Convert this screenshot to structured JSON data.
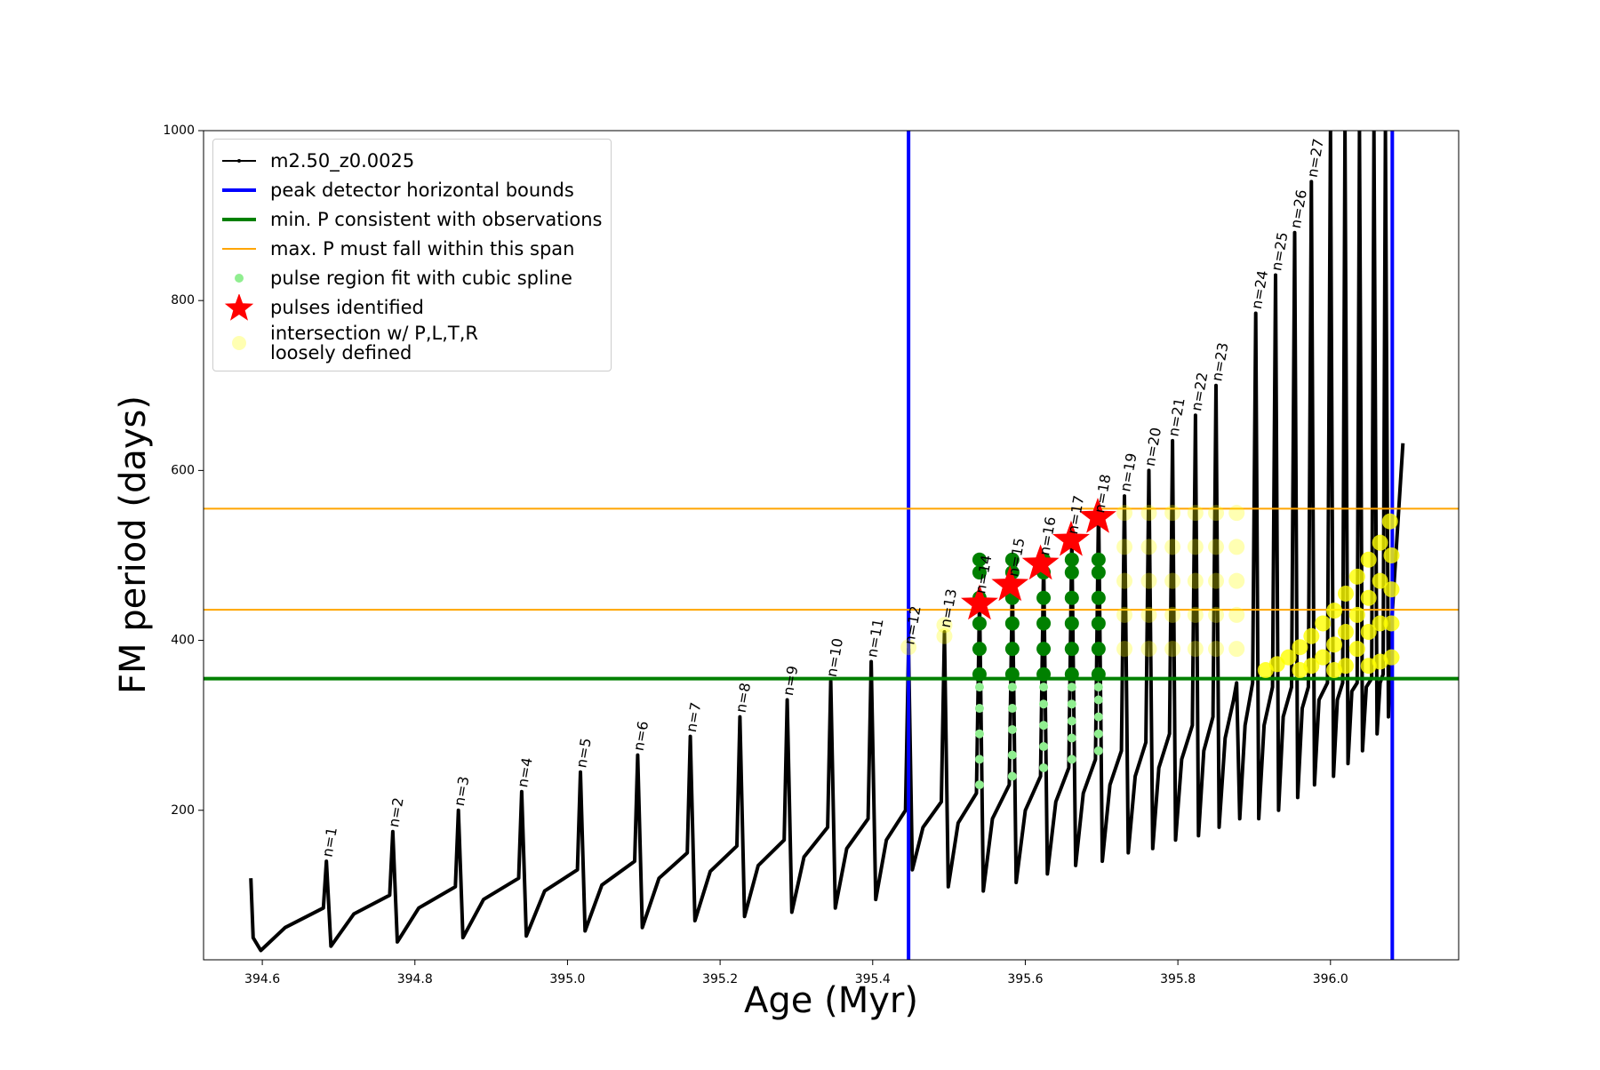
{
  "chart_data": {
    "type": "line",
    "xlabel": "Age (Myr)",
    "ylabel": "FM period (days)",
    "xlim": [
      394.523,
      396.168
    ],
    "ylim": [
      24,
      1000
    ],
    "xticks": [
      394.6,
      394.8,
      {
        "value": 395,
        "label": "395.0"
      },
      395.2,
      395.4,
      395.6,
      395.8,
      {
        "value": 396,
        "label": "396.0"
      }
    ],
    "yticks": [
      200,
      400,
      600,
      800,
      1000
    ],
    "legend": "upper left",
    "series": [
      {
        "name": "m2.50_z0.0025",
        "type": "line",
        "color": "#000000",
        "x": [
          394.585,
          394.588,
          394.598,
          394.63,
          394.68,
          394.684,
          394.69,
          394.72,
          394.767,
          394.771,
          394.777,
          394.805,
          394.853,
          394.857,
          394.863,
          394.89,
          394.936,
          394.94,
          394.946,
          394.97,
          395.013,
          395.017,
          395.023,
          395.045,
          395.088,
          395.092,
          395.098,
          395.12,
          395.157,
          395.161,
          395.167,
          395.187,
          395.222,
          395.226,
          395.232,
          395.25,
          395.284,
          395.288,
          395.294,
          395.31,
          395.341,
          395.345,
          395.351,
          395.366,
          395.394,
          395.398,
          395.404,
          395.418,
          395.443,
          395.447,
          395.452,
          395.466,
          395.49,
          395.494,
          395.499,
          395.512,
          395.536,
          395.54,
          395.545,
          395.557,
          395.579,
          395.583,
          395.588,
          395.6,
          395.62,
          395.624,
          395.629,
          395.64,
          395.657,
          395.661,
          395.666,
          395.676,
          395.692,
          395.696,
          395.701,
          395.711,
          395.726,
          395.73,
          395.735,
          395.744,
          395.758,
          395.762,
          395.767,
          395.775,
          395.789,
          395.793,
          395.797,
          395.805,
          395.819,
          395.823,
          395.827,
          395.834,
          395.846,
          395.85,
          395.854,
          395.862,
          395.873,
          395.877,
          395.881,
          395.888,
          395.898,
          395.902,
          395.906,
          395.913,
          395.924,
          395.928,
          395.932,
          395.938,
          395.949,
          395.953,
          395.957,
          395.963,
          395.971,
          395.975,
          395.979,
          395.985,
          395.996,
          396.0,
          396.004,
          396.009,
          396.016,
          396.019,
          396.023,
          396.028,
          396.035,
          396.038,
          396.042,
          396.047,
          396.054,
          396.057,
          396.061,
          396.065,
          396.069,
          396.072,
          396.076,
          396.08,
          396.095
        ],
        "y": [
          120,
          50,
          35,
          62,
          85,
          140,
          40,
          78,
          100,
          175,
          45,
          85,
          110,
          200,
          50,
          95,
          120,
          222,
          52,
          105,
          130,
          245,
          58,
          112,
          140,
          265,
          62,
          120,
          150,
          287,
          70,
          128,
          158,
          310,
          75,
          135,
          165,
          330,
          80,
          145,
          180,
          352,
          85,
          155,
          190,
          375,
          95,
          165,
          200,
          390,
          130,
          180,
          210,
          410,
          110,
          185,
          220,
          450,
          105,
          190,
          230,
          470,
          115,
          200,
          240,
          495,
          125,
          210,
          250,
          520,
          135,
          220,
          260,
          560,
          140,
          230,
          270,
          570,
          150,
          240,
          280,
          600,
          155,
          250,
          290,
          635,
          165,
          260,
          300,
          665,
          170,
          270,
          310,
          700,
          180,
          285,
          330,
          350,
          190,
          300,
          350,
          785,
          190,
          300,
          345,
          830,
          200,
          310,
          345,
          880,
          215,
          320,
          345,
          940,
          230,
          330,
          350,
          1000,
          240,
          330,
          350,
          1000,
          255,
          340,
          350,
          1000,
          270,
          345,
          355,
          1000,
          290,
          350,
          360,
          1000,
          310,
          420,
          632
        ]
      },
      {
        "name": "peak detector horizontal bounds",
        "type": "vline",
        "color": "#0000ff",
        "x": [
          395.447,
          396.081
        ]
      },
      {
        "name": "min. P consistent with observations",
        "type": "hline",
        "color": "#008000",
        "y": [
          355
        ]
      },
      {
        "name": "max. P must fall within this span",
        "type": "hline",
        "color": "#ffa500",
        "y": [
          436,
          555
        ]
      },
      {
        "name": "pulse region fit with cubic spline",
        "type": "scatter",
        "color": "#90ee90",
        "x": [
          395.54,
          395.54,
          395.54,
          395.54,
          395.54,
          395.583,
          395.583,
          395.583,
          395.583,
          395.583,
          395.624,
          395.624,
          395.624,
          395.624,
          395.624,
          395.661,
          395.661,
          395.661,
          395.661,
          395.661,
          395.696,
          395.696,
          395.696,
          395.696,
          395.696
        ],
        "y": [
          230,
          260,
          290,
          320,
          345,
          240,
          265,
          295,
          320,
          345,
          250,
          275,
          300,
          325,
          345,
          260,
          285,
          305,
          325,
          345,
          270,
          290,
          310,
          330,
          345
        ]
      },
      {
        "type": "scatter",
        "color": "#008000",
        "x": [
          395.54,
          395.54,
          395.54,
          395.54,
          395.54,
          395.54,
          395.583,
          395.583,
          395.583,
          395.583,
          395.583,
          395.583,
          395.624,
          395.624,
          395.624,
          395.624,
          395.624,
          395.624,
          395.661,
          395.661,
          395.661,
          395.661,
          395.661,
          395.661,
          395.696,
          395.696,
          395.696,
          395.696,
          395.696,
          395.696
        ],
        "y": [
          360,
          390,
          420,
          450,
          480,
          495,
          360,
          390,
          420,
          450,
          480,
          495,
          360,
          390,
          420,
          450,
          480,
          495,
          360,
          390,
          420,
          450,
          480,
          495,
          360,
          390,
          420,
          450,
          480,
          495
        ]
      },
      {
        "name": "pulses identified",
        "type": "star",
        "color": "#ff0000",
        "x": [
          395.54,
          395.58,
          395.62,
          395.66,
          395.695
        ],
        "y": [
          443,
          465,
          490,
          518,
          545
        ]
      },
      {
        "name": "intersection w/ P,L,T,R\nloosely defined",
        "type": "scatter",
        "color": "#ffff00",
        "alpha": 0.3,
        "x": [
          395.447,
          395.494,
          395.494,
          395.73,
          395.73,
          395.73,
          395.73,
          395.73,
          395.762,
          395.762,
          395.762,
          395.762,
          395.762,
          395.793,
          395.793,
          395.793,
          395.793,
          395.793,
          395.823,
          395.823,
          395.823,
          395.823,
          395.823,
          395.85,
          395.85,
          395.85,
          395.85,
          395.85,
          395.877,
          395.877,
          395.877,
          395.877,
          395.877
        ],
        "y": [
          392,
          405,
          418,
          390,
          430,
          470,
          510,
          550,
          390,
          430,
          470,
          510,
          550,
          390,
          430,
          470,
          510,
          550,
          390,
          430,
          470,
          510,
          550,
          390,
          430,
          470,
          510,
          550,
          390,
          430,
          470,
          510,
          550
        ]
      },
      {
        "type": "scatter",
        "color": "#ffff00",
        "alpha": 0.8,
        "x": [
          395.915,
          395.93,
          395.945,
          395.96,
          395.975,
          395.99,
          396.005,
          396.02,
          396.035,
          396.05,
          396.065,
          396.078,
          396.08,
          396.08,
          396.08,
          396.065,
          396.065,
          396.05,
          396.05,
          396.035,
          396.035,
          396.02,
          396.02,
          396.005,
          396.005,
          395.99,
          395.975,
          395.96,
          396.08,
          396.065,
          396.05
        ],
        "y": [
          365,
          372,
          380,
          392,
          405,
          420,
          435,
          455,
          475,
          495,
          515,
          540,
          500,
          460,
          420,
          470,
          420,
          450,
          410,
          430,
          390,
          410,
          370,
          395,
          365,
          380,
          370,
          365,
          380,
          375,
          370
        ]
      }
    ],
    "annotations": [
      {
        "text": "n=1",
        "x": 394.684,
        "y": 140
      },
      {
        "text": "n=2",
        "x": 394.771,
        "y": 175
      },
      {
        "text": "n=3",
        "x": 394.857,
        "y": 200
      },
      {
        "text": "n=4",
        "x": 394.94,
        "y": 222
      },
      {
        "text": "n=5",
        "x": 395.017,
        "y": 245
      },
      {
        "text": "n=6",
        "x": 395.092,
        "y": 265
      },
      {
        "text": "n=7",
        "x": 395.161,
        "y": 287
      },
      {
        "text": "n=8",
        "x": 395.226,
        "y": 310
      },
      {
        "text": "n=9",
        "x": 395.288,
        "y": 330
      },
      {
        "text": "n=10",
        "x": 395.345,
        "y": 352
      },
      {
        "text": "n=11",
        "x": 395.398,
        "y": 375
      },
      {
        "text": "n=12",
        "x": 395.447,
        "y": 390
      },
      {
        "text": "n=13",
        "x": 395.494,
        "y": 410
      },
      {
        "text": "n=14",
        "x": 395.54,
        "y": 450
      },
      {
        "text": "n=15",
        "x": 395.583,
        "y": 470
      },
      {
        "text": "n=16",
        "x": 395.624,
        "y": 495
      },
      {
        "text": "n=17",
        "x": 395.661,
        "y": 520
      },
      {
        "text": "n=18",
        "x": 395.696,
        "y": 545
      },
      {
        "text": "n=19",
        "x": 395.73,
        "y": 570
      },
      {
        "text": "n=20",
        "x": 395.762,
        "y": 600
      },
      {
        "text": "n=21",
        "x": 395.793,
        "y": 635
      },
      {
        "text": "n=22",
        "x": 395.823,
        "y": 665
      },
      {
        "text": "n=23",
        "x": 395.85,
        "y": 700
      },
      {
        "text": "n=24",
        "x": 395.902,
        "y": 785
      },
      {
        "text": "n=25",
        "x": 395.928,
        "y": 830
      },
      {
        "text": "n=26",
        "x": 395.953,
        "y": 880
      },
      {
        "text": "n=27",
        "x": 395.975,
        "y": 940
      }
    ]
  }
}
